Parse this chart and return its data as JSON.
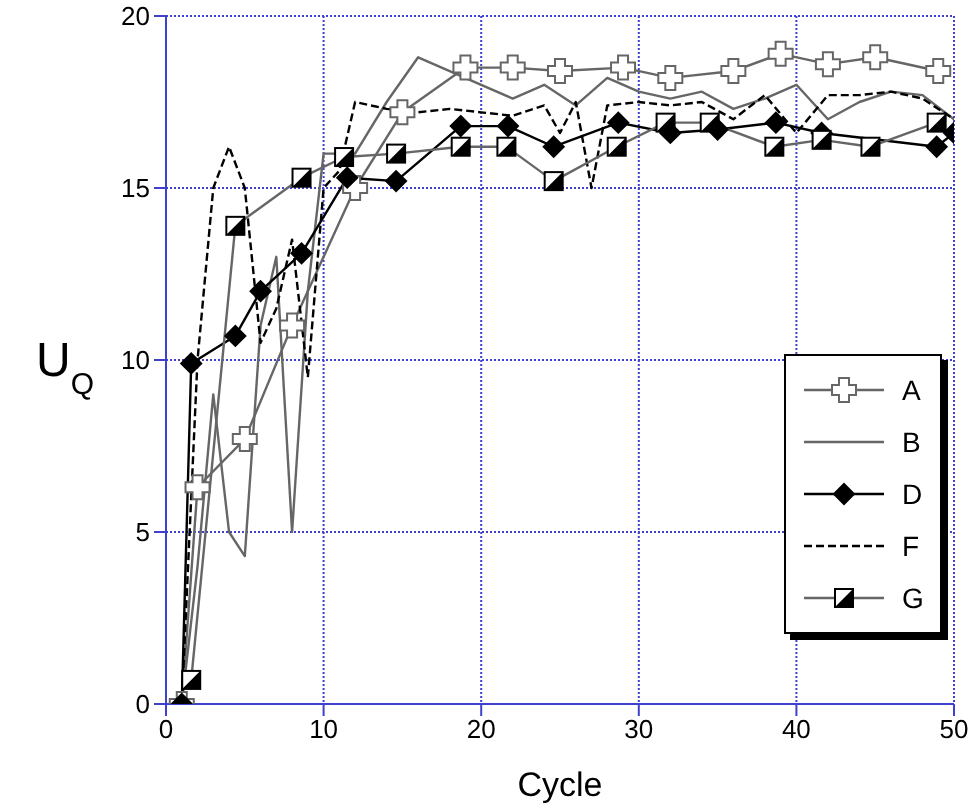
{
  "chart_data": {
    "type": "line",
    "xlabel": "Cycle",
    "ylabel": "U$_{Q}$",
    "xlim": [
      0,
      50
    ],
    "ylim": [
      0,
      20
    ],
    "xticks": [
      0,
      10,
      20,
      30,
      40,
      50
    ],
    "yticks": [
      0,
      5,
      10,
      15,
      20
    ],
    "grid": true,
    "legend": "right",
    "series": [
      {
        "name": "A",
        "color": "#666666",
        "marker": "cross",
        "line_style": "solid",
        "x": [
          1,
          2,
          5,
          8,
          12,
          15,
          19,
          22,
          25,
          29,
          32,
          36,
          39,
          42,
          45,
          49
        ],
        "values": [
          0,
          6.3,
          7.7,
          11,
          15,
          17.2,
          18.5,
          18.5,
          18.4,
          18.5,
          18.2,
          18.4,
          18.9,
          18.6,
          18.8,
          18.4
        ]
      },
      {
        "name": "B",
        "color": "#666666",
        "marker": "none",
        "line_style": "solid",
        "x": [
          1,
          2,
          3,
          4,
          5,
          6,
          7,
          8,
          9,
          10,
          12,
          14,
          16,
          18,
          20,
          22,
          24,
          26,
          28,
          30,
          32,
          34,
          36,
          38,
          40,
          42,
          44,
          46,
          48,
          50
        ],
        "values": [
          0,
          4,
          9,
          5,
          4.3,
          11,
          13,
          5,
          12,
          16,
          16,
          17.5,
          18.8,
          18.4,
          18,
          17.6,
          18,
          17.4,
          18.2,
          17.8,
          17.6,
          17.8,
          17.3,
          17.6,
          18,
          17,
          17.5,
          17.8,
          17.7,
          17
        ]
      },
      {
        "name": "D",
        "color": "#000000",
        "marker": "diamond",
        "line_style": "solid",
        "x": [
          1,
          1.6,
          4.4,
          6,
          8.6,
          11.5,
          14.6,
          18.7,
          21.7,
          24.6,
          28.7,
          32,
          35,
          38.7,
          41.6,
          48.9,
          50
        ],
        "values": [
          0,
          9.9,
          10.7,
          12,
          13.1,
          15.3,
          15.2,
          16.8,
          16.8,
          16.2,
          16.9,
          16.6,
          16.7,
          16.9,
          16.6,
          16.2,
          16.6
        ]
      },
      {
        "name": "F",
        "color": "#000000",
        "marker": "none",
        "line_style": "dashed",
        "x": [
          1,
          2,
          3,
          4,
          5,
          6,
          7,
          8,
          9,
          10,
          11,
          12,
          14,
          16,
          18,
          20,
          22,
          24,
          25,
          26,
          27,
          28,
          30,
          32,
          34,
          36,
          38,
          40,
          42,
          44,
          46,
          48,
          50
        ],
        "values": [
          0,
          10,
          15,
          16.2,
          15,
          10.5,
          11.5,
          13.5,
          9.5,
          15,
          15.5,
          17.5,
          17.3,
          17.2,
          17.3,
          17.2,
          17.1,
          17.4,
          16.6,
          17.5,
          15,
          17.4,
          17.5,
          17.4,
          17.5,
          17,
          17.7,
          16.6,
          17.7,
          17.7,
          17.8,
          17.6,
          17
        ]
      },
      {
        "name": "G",
        "color": "#666666",
        "marker": "square",
        "line_style": "solid",
        "x": [
          1.6,
          4.4,
          8.6,
          11.3,
          14.6,
          18.7,
          21.6,
          24.6,
          28.6,
          31.7,
          34.5,
          38.6,
          41.6,
          44.7,
          48.9
        ],
        "values": [
          0.7,
          13.9,
          15.3,
          15.9,
          16,
          16.2,
          16.2,
          15.2,
          16.2,
          16.9,
          16.9,
          16.2,
          16.4,
          16.2,
          16.9
        ]
      }
    ]
  }
}
